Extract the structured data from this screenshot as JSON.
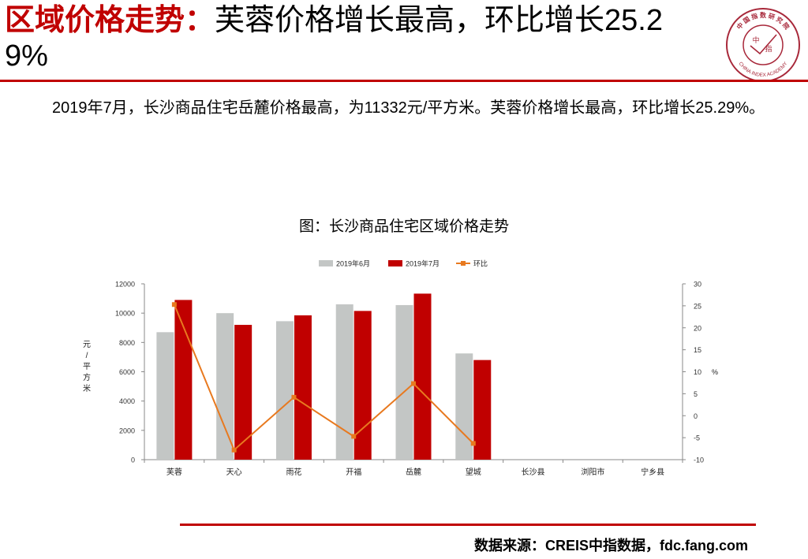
{
  "header": {
    "title_accent": "区域价格走势：",
    "title_rest": "芙蓉价格增长最高，环比增长25.29%",
    "logo": {
      "top_text": "中 国 指 数 研 究 院",
      "center_text": "中",
      "center_text2": "指",
      "bottom_text": "CHINA INDEX ACADEMY"
    }
  },
  "summary": "2019年7月，长沙商品住宅岳麓价格最高，为11332元/平方米。芙蓉价格增长最高，环比增长25.29%。",
  "chart_title": "图：长沙商品住宅区域价格走势",
  "footer": {
    "source": "数据来源：CREIS中指数据，fdc.fang.com"
  },
  "colors": {
    "accent": "#c00000",
    "june": "#c3c6c5",
    "july": "#c00000",
    "mom": "#e8791f"
  },
  "chart_data": {
    "type": "bar",
    "categories": [
      "芙蓉",
      "天心",
      "雨花",
      "开福",
      "岳麓",
      "望城",
      "长沙县",
      "浏阳市",
      "宁乡县"
    ],
    "series": [
      {
        "name": "2019年6月",
        "type": "bar",
        "axis": "left",
        "values": [
          8700,
          10000,
          9450,
          10600,
          10550,
          7250,
          null,
          null,
          null
        ]
      },
      {
        "name": "2019年7月",
        "type": "bar",
        "axis": "left",
        "values": [
          10900,
          9200,
          9850,
          10150,
          11332,
          6800,
          null,
          null,
          null
        ]
      },
      {
        "name": "环比",
        "type": "line",
        "axis": "right",
        "values": [
          25.29,
          -7.8,
          4.2,
          -4.7,
          7.3,
          -6.3,
          null,
          null,
          null
        ]
      }
    ],
    "ylabel": "元/平方米",
    "ylim": [
      0,
      12000
    ],
    "yticks": [
      0,
      2000,
      4000,
      6000,
      8000,
      10000,
      12000
    ],
    "y2label": "%",
    "y2lim": [
      -10,
      30
    ],
    "y2ticks": [
      -10,
      -5,
      0,
      5,
      10,
      15,
      20,
      25,
      30
    ],
    "legend_position": "top",
    "grid": false
  }
}
